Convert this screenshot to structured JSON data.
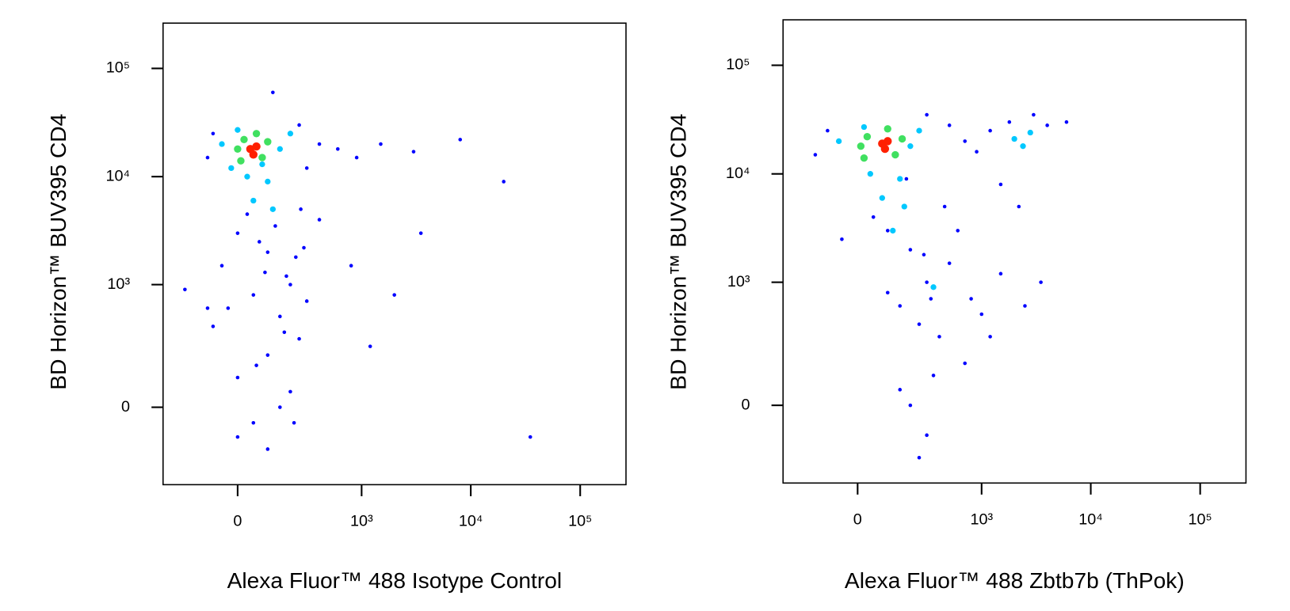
{
  "chart_data": [
    {
      "type": "scatter",
      "scale": "biexponential",
      "xlabel": "Alexa Fluor™ 488 Isotype Control",
      "ylabel": "BD Horizon™ BUV395 CD4",
      "xlim": [
        -340,
        262144
      ],
      "ylim": [
        -370,
        262144
      ],
      "xticks": [
        0,
        {
          "value": 1000,
          "label": "10³"
        },
        {
          "value": 10000,
          "label": "10⁴"
        },
        {
          "value": 100000,
          "label": "10⁵"
        }
      ],
      "yticks": [
        0,
        {
          "value": 1000,
          "label": "10³"
        },
        {
          "value": 10000,
          "label": "10⁴"
        },
        {
          "value": 100000,
          "label": "10⁵"
        }
      ],
      "series": [
        {
          "color": "#0000ff",
          "size": 2.2,
          "x": [
            -100,
            -80,
            250,
            300,
            400,
            600,
            900,
            1500,
            3000,
            8000,
            20000,
            0,
            100,
            200,
            50,
            150,
            -50,
            250,
            100,
            0,
            200,
            150,
            50,
            100,
            0,
            300,
            -100,
            400,
            2000,
            1200,
            35000,
            3500,
            800,
            120,
            -80,
            180,
            70,
            220,
            -200,
            260,
            30,
            130,
            230,
            90,
            -30,
            170,
            280,
            60
          ],
          "y": [
            15000,
            25000,
            30000,
            12000,
            20000,
            18000,
            15000,
            20000,
            17000,
            22000,
            9000,
            3000,
            2000,
            1000,
            800,
            500,
            1500,
            300,
            200,
            100,
            50,
            0,
            -50,
            -150,
            -100,
            700,
            600,
            4000,
            800,
            250,
            -100,
            3000,
            1500,
            60000,
            400,
            1200,
            2500,
            -50,
            900,
            5000,
            4500,
            3500,
            1800,
            1300,
            600,
            350,
            2200,
            150
          ]
        },
        {
          "color": "#00c8ff",
          "size": 3.5,
          "x": [
            -50,
            150,
            30,
            100,
            0,
            200,
            50,
            120,
            80,
            -20
          ],
          "y": [
            20000,
            18000,
            10000,
            9000,
            27000,
            25000,
            6000,
            5000,
            13000,
            12000
          ]
        },
        {
          "color": "#40e060",
          "size": 4.5,
          "x": [
            20,
            80,
            10,
            100,
            60,
            0
          ],
          "y": [
            22000,
            15000,
            14000,
            21000,
            25000,
            18000
          ]
        },
        {
          "color": "#ff2000",
          "size": 5,
          "x": [
            40,
            60,
            50
          ],
          "y": [
            18000,
            19000,
            16000
          ]
        }
      ]
    },
    {
      "type": "scatter",
      "scale": "biexponential",
      "xlabel": "Alexa Fluor™ 488 Zbtb7b (ThPok)",
      "ylabel": "BD Horizon™ BUV395 CD4",
      "xlim": [
        -340,
        262144
      ],
      "ylim": [
        -370,
        262144
      ],
      "xticks": [
        0,
        {
          "value": 1000,
          "label": "10³"
        },
        {
          "value": 10000,
          "label": "10⁴"
        },
        {
          "value": 100000,
          "label": "10⁵"
        }
      ],
      "yticks": [
        0,
        {
          "value": 1000,
          "label": "10³"
        },
        {
          "value": 10000,
          "label": "10⁴"
        },
        {
          "value": 100000,
          "label": "10⁵"
        }
      ],
      "series": [
        {
          "color": "#0000ff",
          "size": 2.2,
          "x": [
            -150,
            -100,
            300,
            500,
            700,
            900,
            1200,
            1800,
            3000,
            4000,
            6000,
            1500,
            2200,
            100,
            200,
            300,
            150,
            250,
            400,
            350,
            200,
            300,
            250,
            150,
            100,
            500,
            800,
            1000,
            1500,
            2500,
            600,
            50,
            -50,
            450,
            280,
            180,
            1200,
            3500,
            700,
            330
          ],
          "y": [
            15000,
            25000,
            35000,
            28000,
            20000,
            16000,
            25000,
            30000,
            35000,
            28000,
            30000,
            8000,
            5000,
            3000,
            2000,
            1000,
            600,
            400,
            300,
            100,
            0,
            -100,
            -200,
            50,
            800,
            1500,
            700,
            500,
            1200,
            600,
            3000,
            4000,
            2500,
            5000,
            1800,
            9000,
            300,
            1000,
            150,
            700
          ]
        },
        {
          "color": "#00c8ff",
          "size": 3.5,
          "x": [
            -60,
            200,
            40,
            150,
            20,
            250,
            80,
            170,
            2000,
            2800,
            2400,
            350,
            120
          ],
          "y": [
            20000,
            18000,
            10000,
            9000,
            27000,
            25000,
            6000,
            5000,
            21000,
            24000,
            18000,
            900,
            3000
          ]
        },
        {
          "color": "#40e060",
          "size": 4.5,
          "x": [
            30,
            130,
            20,
            160,
            100,
            10
          ],
          "y": [
            22000,
            15000,
            14000,
            21000,
            26000,
            18000
          ]
        },
        {
          "color": "#ff2000",
          "size": 5,
          "x": [
            80,
            100,
            90
          ],
          "y": [
            19000,
            20000,
            17000
          ]
        }
      ]
    }
  ]
}
